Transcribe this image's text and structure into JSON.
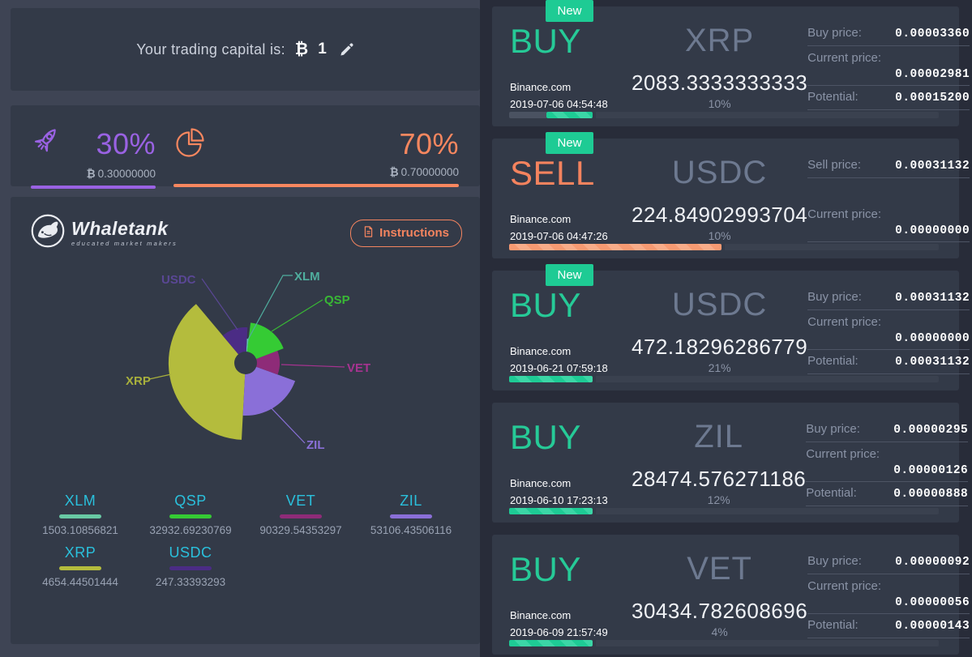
{
  "colors": {
    "page_bg": "#282c39",
    "left_container_bg": "#3e4454",
    "panel_bg": "#333a48",
    "buy_green": "#26ca97",
    "sell_orange": "#f4835e",
    "badge_green": "#1ecb94",
    "legend_label_cyan": "#2ac0dc"
  },
  "icons": {
    "edit": "pencil-icon",
    "currency": "bitcoin-icon",
    "trading": "rocket-icon",
    "reserve": "pie-icon",
    "instructions": "document-icon",
    "logo": "whale-logo-icon"
  },
  "capital": {
    "label": "Your trading capital is:",
    "currency_symbol": "₿",
    "value": "1"
  },
  "allocation": {
    "trading": {
      "percent": "30%",
      "symbol": "₿",
      "amount": "0.30000000",
      "color": "#9a62e3"
    },
    "reserve": {
      "percent": "70%",
      "symbol": "₿",
      "amount": "0.70000000",
      "color": "#f8875f"
    }
  },
  "portfolio": {
    "logo": {
      "title": "Whaletank",
      "subtitle": "educated market makers"
    },
    "instructions_label": "Instructions",
    "legend": [
      {
        "label": "XLM",
        "value": "1503.10856821",
        "color": "#68c9a4"
      },
      {
        "label": "QSP",
        "value": "32932.69230769",
        "color": "#35cb34"
      },
      {
        "label": "VET",
        "value": "90329.54353297",
        "color": "#8e2b78"
      },
      {
        "label": "ZIL",
        "value": "53106.43506116",
        "color": "#8a6fd8"
      },
      {
        "label": "XRP",
        "value": "4654.44501444",
        "color": "#b4bc3d"
      },
      {
        "label": "USDC",
        "value": "247.33393293",
        "color": "#4b2c85"
      }
    ]
  },
  "chart_data": {
    "type": "pie-rose",
    "title": "",
    "legend_position": "bottom",
    "center": [
      290,
      145
    ],
    "hole_r": 14,
    "hole_color": "#333a48",
    "segments": [
      {
        "name": "XRP",
        "value": 4654.44501444,
        "color": "#b4bc3d",
        "start": 130,
        "end": 267,
        "r": 95,
        "label_color": "#a8b03c",
        "label_x": 142,
        "label_y": 172,
        "line": [
          [
            171,
            165
          ],
          [
            198,
            159
          ]
        ]
      },
      {
        "name": "ZIL",
        "value": 53106.43506116,
        "color": "#8a6fd8",
        "start": 267,
        "end": 340,
        "r": 65,
        "label_color": "#8a70d8",
        "label_x": 365,
        "label_y": 251,
        "line": [
          [
            363,
            244
          ],
          [
            320,
            199
          ]
        ]
      },
      {
        "name": "VET",
        "value": 90329.54353297,
        "color": "#8e2b78",
        "start": -20,
        "end": 21,
        "r": 42,
        "label_color": "#a63390",
        "label_x": 415,
        "label_y": 156,
        "line": [
          [
            412,
            150
          ],
          [
            334,
            147
          ]
        ]
      },
      {
        "name": "QSP",
        "value": 32932.69230769,
        "color": "#35cb34",
        "start": 21,
        "end": 83,
        "r": 50,
        "label_color": "#39b835",
        "label_x": 387,
        "label_y": 72,
        "line": [
          [
            385,
            67
          ],
          [
            322,
            106
          ]
        ]
      },
      {
        "name": "XLM",
        "value": 1503.10856821,
        "color": "#5fc9ae",
        "start": 83,
        "end": 87,
        "r": 30,
        "label_color": "#4fae9e",
        "label_x": 350,
        "label_y": 43,
        "line": [
          [
            348,
            37
          ],
          [
            336,
            37
          ],
          [
            293,
            116
          ]
        ]
      },
      {
        "name": "USDC",
        "value": 247.33393293,
        "color": "#4b2c85",
        "start": 87,
        "end": 130,
        "r": 44,
        "label_color": "#5a4795",
        "label_x": 186,
        "label_y": 47,
        "line": [
          [
            236,
            41
          ],
          [
            280,
            104
          ]
        ]
      }
    ]
  },
  "cards": [
    {
      "badge": "New",
      "action": "BUY",
      "action_color": "#26ca97",
      "exchange": "Binance.com",
      "datetime": "2019-07-06 04:54:48",
      "coin": "XRP",
      "amount": "2083.3333333333",
      "percent": "10%",
      "prices": {
        "p1": {
          "label": "Buy price:",
          "value": "0.00003360"
        },
        "p2": {
          "label": "Current price:",
          "value": "0.00002981"
        },
        "p3": {
          "label": "Potential:",
          "value": "0.00015200"
        }
      },
      "bar": [
        [
          "muted",
          46
        ],
        [
          "green",
          57
        ],
        [
          "gap",
          4
        ],
        [
          "track",
          "flex"
        ]
      ]
    },
    {
      "badge": "New",
      "action": "SELL",
      "action_color": "#f4835e",
      "exchange": "Binance.com",
      "datetime": "2019-07-06 04:47:26",
      "coin": "USDC",
      "amount": "224.84902993704",
      "percent": "10%",
      "prices": {
        "p1": {
          "label": "Sell price:",
          "value": "0.00031132"
        },
        "p2": {
          "label": "Current price:",
          "value": "0.00000000"
        }
      },
      "bar": [
        [
          "orange",
          262
        ],
        [
          "gap",
          4
        ],
        [
          "track",
          "flex"
        ]
      ]
    },
    {
      "badge": "New",
      "action": "BUY",
      "action_color": "#26ca97",
      "exchange": "Binance.com",
      "datetime": "2019-06-21 07:59:18",
      "coin": "USDC",
      "amount": "472.18296286779",
      "percent": "21%",
      "prices": {
        "p1": {
          "label": "Buy price:",
          "value": "0.00031132"
        },
        "p2": {
          "label": "Current price:",
          "value": "0.00000000"
        },
        "p3": {
          "label": "Potential:",
          "value": "0.00031132"
        }
      },
      "bar": [
        [
          "green",
          103
        ],
        [
          "gap",
          4
        ],
        [
          "track",
          "flex"
        ]
      ]
    },
    {
      "action": "BUY",
      "action_color": "#26ca97",
      "exchange": "Binance.com",
      "datetime": "2019-06-10 17:23:13",
      "coin": "ZIL",
      "amount": "28474.576271186",
      "percent": "12%",
      "prices": {
        "p1": {
          "label": "Buy price:",
          "value": "0.00000295"
        },
        "p2": {
          "label": "Current price:",
          "value": "0.00000126"
        },
        "p3": {
          "label": "Potential:",
          "value": "0.00000888"
        }
      },
      "bar": [
        [
          "green",
          103
        ],
        [
          "gap",
          4
        ],
        [
          "track",
          "flex"
        ]
      ]
    },
    {
      "action": "BUY",
      "action_color": "#26ca97",
      "exchange": "Binance.com",
      "datetime": "2019-06-09 21:57:49",
      "coin": "VET",
      "amount": "30434.782608696",
      "percent": "4%",
      "prices": {
        "p1": {
          "label": "Buy price:",
          "value": "0.00000092"
        },
        "p2": {
          "label": "Current price:",
          "value": "0.00000056"
        },
        "p3": {
          "label": "Potential:",
          "value": "0.00000143"
        }
      },
      "bar": [
        [
          "green",
          103
        ],
        [
          "gap",
          4
        ],
        [
          "track",
          "flex"
        ]
      ]
    }
  ]
}
